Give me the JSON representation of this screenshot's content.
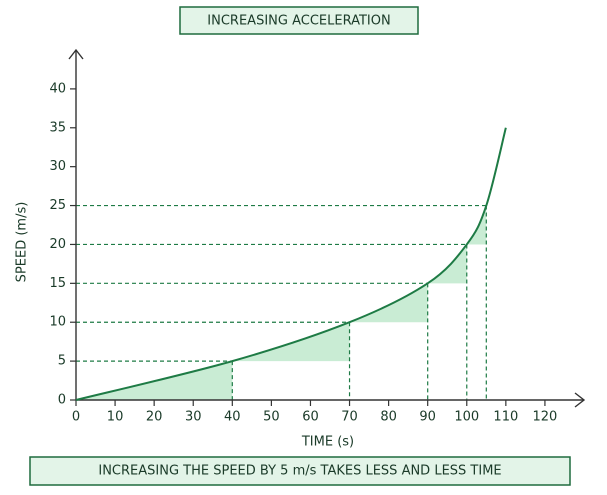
{
  "chart_data": {
    "type": "line",
    "title": "INCREASING ACCELERATION",
    "annotation": "INCREASING THE SPEED BY 5 m/s TAKES LESS AND LESS TIME",
    "x_label": "TIME (s)",
    "y_label": "SPEED (m/s)",
    "x": [
      0,
      40,
      70,
      90,
      100,
      105,
      110
    ],
    "values": [
      0,
      5,
      10,
      15,
      20,
      25,
      35
    ],
    "color": "#1e7b45",
    "xlim": [
      0,
      130
    ],
    "ylim": [
      0,
      45
    ],
    "xticks": [
      0,
      10,
      20,
      30,
      40,
      50,
      60,
      70,
      80,
      90,
      100,
      110,
      120
    ],
    "yticks": [
      0,
      5,
      10,
      15,
      20,
      25,
      30,
      35,
      40
    ]
  }
}
